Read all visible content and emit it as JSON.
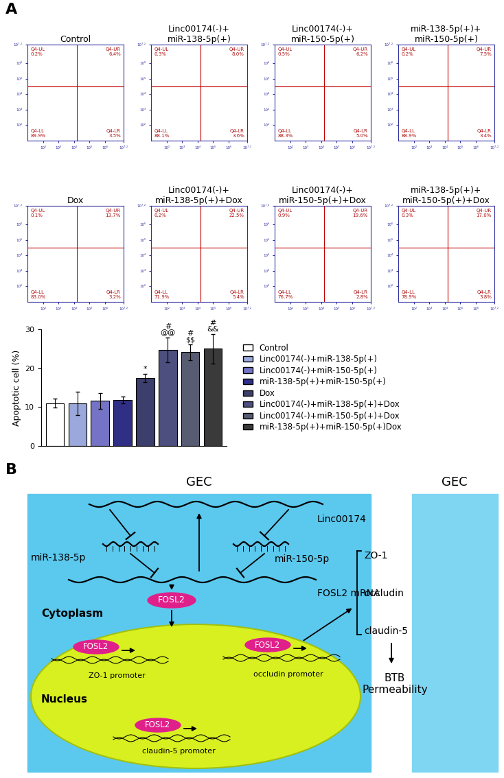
{
  "panel_labels": [
    "A",
    "B"
  ],
  "flow_plots": {
    "xlim": [
      10,
      15848931.92
    ],
    "ylim": [
      10,
      15848931.92
    ],
    "ticks": [
      {
        "value": 100,
        "label": "10²"
      },
      {
        "value": 1000,
        "label": "10³"
      },
      {
        "value": 10000,
        "label": "10⁴"
      },
      {
        "value": 100000,
        "label": "10⁵"
      },
      {
        "value": 1000000,
        "label": "10⁶"
      },
      {
        "value": 15848931.92,
        "label": "10⁷·²"
      }
    ],
    "gate_x": 15000,
    "gate_y": 30000,
    "plots": [
      {
        "title": "Control",
        "quadrants": [
          {
            "name": "Q4-UL",
            "value": 0.2,
            "label": "0.2%"
          },
          {
            "name": "Q4-UR",
            "value": 6.4,
            "label": "6.4%"
          },
          {
            "name": "Q4-LL",
            "value": 89.9,
            "label": "89.9%"
          },
          {
            "name": "Q4-LR",
            "value": 3.5,
            "label": "3.5%"
          }
        ]
      },
      {
        "title": "Linc00174(-)+\nmiR-138-5p(+)",
        "quadrants": [
          {
            "name": "Q4-UL",
            "value": 0.3,
            "label": "0.3%"
          },
          {
            "name": "Q4-UR",
            "value": 8.0,
            "label": "8.0%"
          },
          {
            "name": "Q4-LL",
            "value": 88.1,
            "label": "88.1%"
          },
          {
            "name": "Q4-LR",
            "value": 3.6,
            "label": "3.6%"
          }
        ]
      },
      {
        "title": "Linc00174(-)+\nmiR-150-5p(+)",
        "quadrants": [
          {
            "name": "Q4-UL",
            "value": 0.5,
            "label": "0.5%"
          },
          {
            "name": "Q4-UR",
            "value": 6.2,
            "label": "6.2%"
          },
          {
            "name": "Q4-LL",
            "value": 88.3,
            "label": "88.3%"
          },
          {
            "name": "Q4-LR",
            "value": 5.0,
            "label": "5.0%"
          }
        ]
      },
      {
        "title": "miR-138-5p(+)+\nmiR-150-5p(+)",
        "quadrants": [
          {
            "name": "Q4-UL",
            "value": 0.2,
            "label": "0.2%"
          },
          {
            "name": "Q4-UR",
            "value": 7.5,
            "label": "7.5%"
          },
          {
            "name": "Q4-LL",
            "value": 88.9,
            "label": "88.9%"
          },
          {
            "name": "Q4-LR",
            "value": 3.4,
            "label": "3.4%"
          }
        ]
      },
      {
        "title": "Dox",
        "quadrants": [
          {
            "name": "Q4-UL",
            "value": 0.1,
            "label": "0.1%"
          },
          {
            "name": "Q4-UR",
            "value": 13.7,
            "label": "13.7%"
          },
          {
            "name": "Q4-LL",
            "value": 83.0,
            "label": "83.0%"
          },
          {
            "name": "Q4-LR",
            "value": 3.2,
            "label": "3.2%"
          }
        ]
      },
      {
        "title": "Linc00174(-)+\nmiR-138-5p(+)+Dox",
        "quadrants": [
          {
            "name": "Q4-UL",
            "value": 0.2,
            "label": "0.2%"
          },
          {
            "name": "Q4-UR",
            "value": 22.5,
            "label": "22.5%"
          },
          {
            "name": "Q4-LL",
            "value": 71.9,
            "label": "71.9%"
          },
          {
            "name": "Q4-LR",
            "value": 5.4,
            "label": "5.4%"
          }
        ]
      },
      {
        "title": "Linc00174(-)+\nmiR-150-5p(+)+Dox",
        "quadrants": [
          {
            "name": "Q4-UL",
            "value": 0.9,
            "label": "0.9%"
          },
          {
            "name": "Q4-UR",
            "value": 19.6,
            "label": "19.6%"
          },
          {
            "name": "Q4-LL",
            "value": 76.7,
            "label": "76.7%"
          },
          {
            "name": "Q4-LR",
            "value": 2.8,
            "label": "2.8%"
          }
        ]
      },
      {
        "title": "miR-138-5p(+)+\nmiR-150-5p(+)+Dox",
        "quadrants": [
          {
            "name": "Q4-UL",
            "value": 0.3,
            "label": "0.3%"
          },
          {
            "name": "Q4-UR",
            "value": 17.0,
            "label": "17.0%"
          },
          {
            "name": "Q4-LL",
            "value": 78.9,
            "label": "78.9%"
          },
          {
            "name": "Q4-LR",
            "value": 3.8,
            "label": "3.8%"
          }
        ]
      }
    ]
  },
  "chart_data": {
    "type": "bar",
    "y_label": "Apoptotic cell (%)",
    "categories": [
      "Control",
      "Linc00174(-)+miR-138-5p(+)",
      "Linc00174(-)+miR-150-5p(+)",
      "miR-138-5p(+)+miR-150-5p(+)",
      "Dox",
      "Linc00174(-)+miR-138-5p(+)+Dox",
      "Linc00174(-)+miR-150-5p(+)+Dox",
      "miR-138-5p(+)+miR-150-5p(+)Dox"
    ],
    "values": [
      11.0,
      10.9,
      11.6,
      11.8,
      17.5,
      24.7,
      24.1,
      25.0
    ],
    "errors": [
      1.2,
      3.0,
      2.0,
      0.9,
      1.1,
      3.2,
      2.0,
      3.8
    ],
    "colors": [
      "#ffffff",
      "#9aa8dc",
      "#7473c6",
      "#2f2f86",
      "#3c3f6c",
      "#4d4f7e",
      "#575c73",
      "#3a3a3a"
    ],
    "significance": [
      {
        "index": 4,
        "text": "*"
      },
      {
        "index": 5,
        "text": "#\n@@"
      },
      {
        "index": 6,
        "text": "#\n$$"
      },
      {
        "index": 7,
        "text": "#\n&&"
      }
    ],
    "ylim": [
      0,
      30
    ],
    "yticks": [
      0,
      10,
      20,
      30
    ],
    "tick_labels": "y",
    "legend": "center left"
  },
  "diagram": {
    "cells": [
      "GEC",
      "GEC"
    ],
    "lncrna": "Linc00174",
    "mirnas": [
      "miR-138-5p",
      "miR-150-5p"
    ],
    "mrna": "FOSL2 mRNA",
    "protein": "FOSL2",
    "compartments": [
      "Cytoplasm",
      "Nucleus"
    ],
    "promoters": [
      "ZO-1 promoter",
      "occludin promoter",
      "claudin-5 promoter"
    ],
    "targets": [
      "ZO-1",
      "occludin",
      "claudin-5"
    ],
    "outcome": "BTB\nPermeability"
  }
}
